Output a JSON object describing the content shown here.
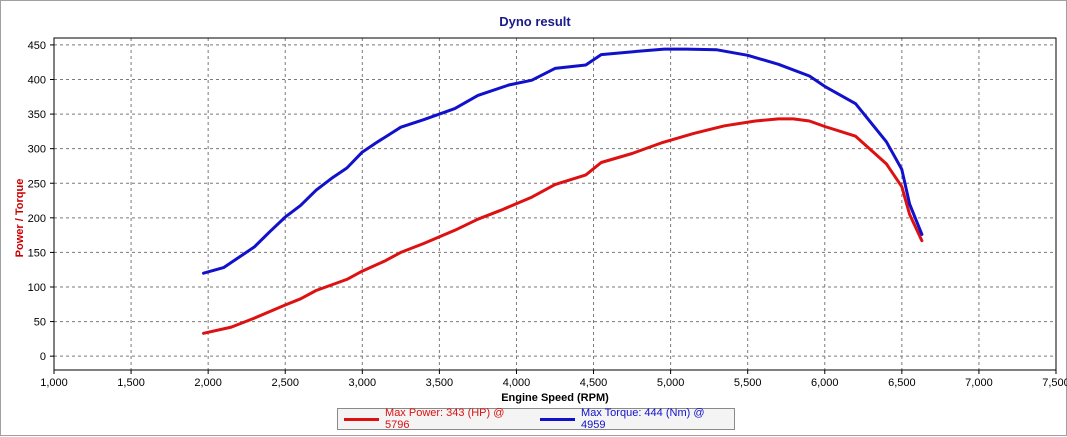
{
  "chart_data": {
    "type": "line",
    "title": "Dyno result",
    "xlabel": "Engine Speed (RPM)",
    "ylabel": "Power / Torque",
    "xlim": [
      1000,
      7500
    ],
    "ylim": [
      -20,
      460
    ],
    "x_ticks": [
      1000,
      1500,
      2000,
      2500,
      3000,
      3500,
      4000,
      4500,
      5000,
      5500,
      6000,
      6500,
      7000,
      7500
    ],
    "x_tick_labels": [
      "1,000",
      "1,500",
      "2,000",
      "2,500",
      "3,000",
      "3,500",
      "4,000",
      "4,500",
      "5,000",
      "5,500",
      "6,000",
      "6,500",
      "7,000",
      "7,500"
    ],
    "y_ticks": [
      0,
      50,
      100,
      150,
      200,
      250,
      300,
      350,
      400,
      450
    ],
    "y_tick_labels": [
      "0",
      "50",
      "100",
      "150",
      "200",
      "250",
      "300",
      "350",
      "400",
      "450"
    ],
    "grid": true,
    "legend_position": "bottom",
    "colors": {
      "title": "#1a1a8c",
      "ylabel": "#cc0000",
      "axis_text": "#000000",
      "grid": "#7a7a7a",
      "power": "#dd1111",
      "torque": "#1111cc"
    },
    "series": [
      {
        "name": "Max Power: 343 (HP) @ 5796",
        "color": "#dd1111",
        "x": [
          1970,
          2150,
          2300,
          2500,
          2600,
          2700,
          2900,
          3000,
          3150,
          3250,
          3400,
          3600,
          3750,
          3900,
          4100,
          4250,
          4450,
          4550,
          4750,
          4950,
          5150,
          5350,
          5550,
          5700,
          5796,
          5900,
          6000,
          6200,
          6400,
          6500,
          6550,
          6630
        ],
        "y": [
          33,
          42,
          55,
          74,
          83,
          95,
          111,
          123,
          138,
          150,
          163,
          182,
          198,
          211,
          230,
          248,
          262,
          280,
          293,
          309,
          322,
          333,
          340,
          343,
          343,
          340,
          332,
          318,
          278,
          245,
          205,
          167
        ]
      },
      {
        "name": "Max Torque: 444 (Nm) @ 4959",
        "color": "#1111cc",
        "x": [
          1970,
          2100,
          2200,
          2300,
          2400,
          2500,
          2600,
          2700,
          2800,
          2900,
          3000,
          3100,
          3250,
          3400,
          3600,
          3750,
          3950,
          4100,
          4250,
          4450,
          4550,
          4800,
          4959,
          5100,
          5300,
          5500,
          5700,
          5900,
          6000,
          6200,
          6400,
          6500,
          6550,
          6630
        ],
        "y": [
          120,
          128,
          143,
          158,
          180,
          201,
          218,
          240,
          257,
          272,
          295,
          310,
          331,
          342,
          358,
          377,
          392,
          399,
          416,
          421,
          436,
          441,
          444,
          444,
          443,
          435,
          422,
          405,
          390,
          365,
          310,
          270,
          220,
          176
        ]
      }
    ]
  }
}
